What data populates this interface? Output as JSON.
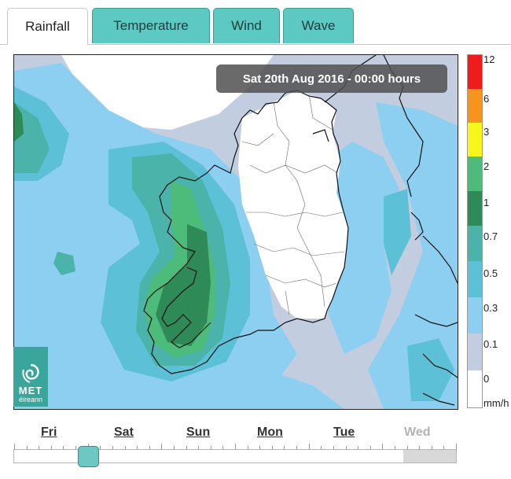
{
  "tabs": [
    {
      "label": "Rainfall",
      "active": true
    },
    {
      "label": "Temperature",
      "active": false
    },
    {
      "label": "Wind",
      "active": false
    },
    {
      "label": "Wave",
      "active": false
    }
  ],
  "timestamp": "Sat 20th Aug 2016 - 00:00 hours",
  "logo": {
    "line1": "MET",
    "line2": "éireann",
    "icon": "swirl-icon"
  },
  "legend": {
    "unit": "mm/h",
    "levels": [
      {
        "label": "12",
        "color": "#ee1c1c"
      },
      {
        "label": "6",
        "color": "#f7941d"
      },
      {
        "label": "3",
        "color": "#f7f71e"
      },
      {
        "label": "2",
        "color": "#4dbb7a"
      },
      {
        "label": "1",
        "color": "#2e8b57"
      },
      {
        "label": "0.7",
        "color": "#4bb3a9"
      },
      {
        "label": "0.5",
        "color": "#5cc0d6"
      },
      {
        "label": "0.3",
        "color": "#8dcff0"
      },
      {
        "label": "0.1",
        "color": "#c2cde0"
      },
      {
        "label": "0",
        "color": "#ffffff"
      }
    ]
  },
  "timeline": {
    "days": [
      {
        "label": "Fri",
        "enabled": true
      },
      {
        "label": "Sat",
        "enabled": true
      },
      {
        "label": "Sun",
        "enabled": true
      },
      {
        "label": "Mon",
        "enabled": true
      },
      {
        "label": "Tue",
        "enabled": true
      },
      {
        "label": "Wed",
        "enabled": false
      }
    ]
  }
}
